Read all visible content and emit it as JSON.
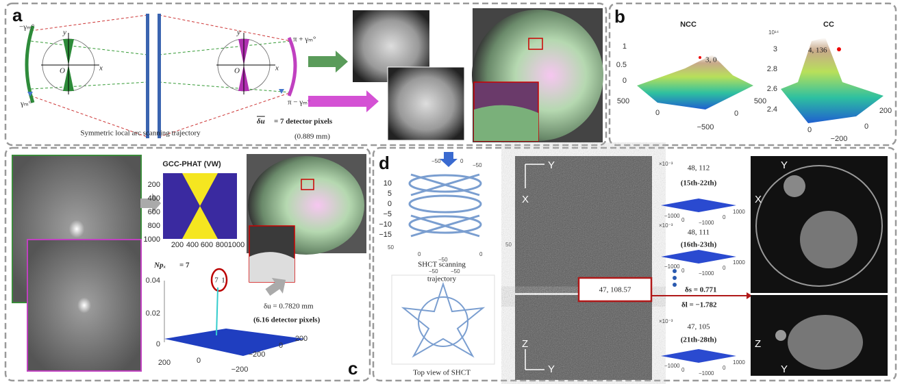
{
  "panel_a": {
    "label": "a",
    "left_top_angle": "−γₘ°",
    "left_bottom_angle": "γₘ°",
    "left_axis_y": "y",
    "left_axis_x": "x",
    "left_origin": "O",
    "right_axis_y": "y",
    "right_axis_x": "x",
    "right_origin": "O",
    "right_top_angle": "π + γₘ°",
    "right_bottom_angle": "π − γₘ°",
    "caption": "Symmetric local arc scanning trajectory",
    "shift_symbol": "δu",
    "shift_text": "= 7 detector  pixels",
    "shift_mm": "(0.889 mm)"
  },
  "panel_b": {
    "label": "b",
    "ncc": {
      "title": "NCC",
      "peak": "3, 0",
      "z_ticks": [
        "1",
        "0.5",
        "0"
      ],
      "x_ticks": [
        "500",
        "0",
        "−500"
      ],
      "y_ticks": [
        "0",
        "500"
      ]
    },
    "cc": {
      "title": "CC",
      "peak": "4, 136",
      "exponent": "10¹⁴",
      "z_ticks": [
        "3",
        "2.8",
        "2.6",
        "2.4"
      ],
      "x_ticks": [
        "0",
        "−200"
      ],
      "y_ticks": [
        "0",
        "200"
      ]
    }
  },
  "panel_c": {
    "label": "c",
    "title": "GCC-PHAT (VW)",
    "map_y_ticks": [
      "200",
      "400",
      "600",
      "800",
      "1000"
    ],
    "map_x_ticks": [
      "200",
      "400",
      "600",
      "800",
      "1000"
    ],
    "estimate_symbol": "Npₓ",
    "estimate_text": "= 7",
    "peak_left": "7",
    "peak_right": "1",
    "z_ticks": [
      "0.04",
      "0.02",
      "0"
    ],
    "x_ticks": [
      "200",
      "0",
      "−200"
    ],
    "y_ticks": [
      "−200",
      "0",
      "200"
    ],
    "shift_mm": "δu = 0.7820 mm",
    "shift_px": "(6.16 detector pixels)"
  },
  "panel_d": {
    "label": "d",
    "traj_z_ticks": [
      "10",
      "5",
      "0",
      "−5",
      "−10",
      "−15"
    ],
    "traj_x_ticks": [
      "50",
      "0",
      "−50"
    ],
    "traj_y_ticks": [
      "0",
      "50"
    ],
    "traj_top_ticks": [
      "−50",
      "0",
      "−50"
    ],
    "traj_caption_1": "SHCT scanning",
    "traj_caption_2": "trajectory",
    "top_ticks": [
      "−50",
      "−50"
    ],
    "top_caption": "Top view of SHCT",
    "axial_y": "Y",
    "axial_x": "X",
    "coronal_z": "Z",
    "coronal_y": "Y",
    "box_value": "47, 108.57",
    "peaks": [
      {
        "exponent": "×10⁻³",
        "value": "48, 112",
        "range": "(15th-22th)",
        "ticks": [
          "−1000",
          "0",
          "−1000",
          "0",
          "1000"
        ]
      },
      {
        "exponent": "×10⁻³",
        "value": "48, 111",
        "range": "(16th-23th)",
        "ticks": [
          "−1000",
          "0",
          "−1000",
          "0",
          "1000"
        ]
      },
      {
        "exponent": "×10⁻³",
        "value": "47, 105",
        "range": "(21th-28th)",
        "ticks": [
          "−1000",
          "0",
          "−1000",
          "0",
          "1000"
        ]
      }
    ],
    "delta_s": "δs = 0.771",
    "delta_l": "δl = −1.782",
    "result_axial_y": "Y",
    "result_axial_x": "X",
    "result_coronal_z": "Z",
    "result_coronal_y": "Y"
  }
}
